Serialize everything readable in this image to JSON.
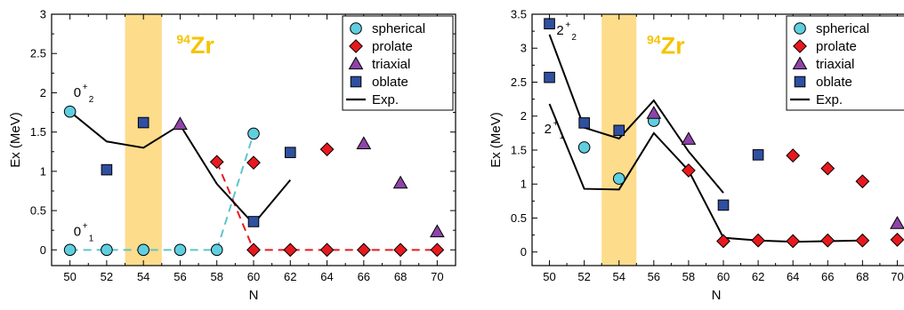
{
  "colors": {
    "spherical": "#5fcfe0",
    "prolate": "#e8191e",
    "triaxial": "#8e44a8",
    "oblate": "#2f4fa0",
    "band": "#fddc8c",
    "zr_label": "#f5c400",
    "ground_dash_spherical": "#5fc4cc",
    "ground_dash_prolate": "#e8191e"
  },
  "chart_data": [
    {
      "type": "scatter",
      "title": "",
      "xlabel": "N",
      "ylabel": "Ex (MeV)",
      "xlim": [
        49,
        71
      ],
      "ylim": [
        -0.2,
        3.0
      ],
      "xticks": [
        50,
        52,
        54,
        56,
        58,
        60,
        62,
        64,
        66,
        68,
        70
      ],
      "yticks": [
        0,
        0.5,
        1,
        1.5,
        2,
        2.5,
        3
      ],
      "ytick_labels": [
        "0",
        "0.5",
        "1",
        "1.5",
        "2",
        "2.5",
        "3"
      ],
      "band": [
        53,
        55
      ],
      "band_label": {
        "sup": "94",
        "text": "Zr",
        "x": 55.8,
        "y": 2.5
      },
      "annotations": [
        {
          "base": "0",
          "sup": "+",
          "sub": "2",
          "x": 50.2,
          "y": 1.95
        },
        {
          "base": "0",
          "sup": "+",
          "sub": "1",
          "x": 50.2,
          "y": 0.18
        }
      ],
      "series": [
        {
          "name": "spherical",
          "marker": "circle",
          "points": [
            [
              50,
              1.76
            ],
            [
              50,
              0
            ],
            [
              52,
              0
            ],
            [
              54,
              0
            ],
            [
              56,
              0
            ],
            [
              58,
              0
            ],
            [
              60,
              1.48
            ]
          ]
        },
        {
          "name": "prolate",
          "marker": "diamond",
          "points": [
            [
              58,
              1.12
            ],
            [
              60,
              1.11
            ],
            [
              64,
              1.28
            ],
            [
              60,
              0
            ],
            [
              62,
              0
            ],
            [
              64,
              0
            ],
            [
              66,
              0
            ],
            [
              68,
              0
            ],
            [
              70,
              0
            ]
          ]
        },
        {
          "name": "triaxial",
          "marker": "triangle",
          "points": [
            [
              56,
              1.6
            ],
            [
              66,
              1.35
            ],
            [
              68,
              0.85
            ],
            [
              70,
              0.23
            ]
          ]
        },
        {
          "name": "oblate",
          "marker": "square",
          "points": [
            [
              52,
              1.02
            ],
            [
              54,
              1.62
            ],
            [
              60,
              0.36
            ],
            [
              62,
              1.24
            ]
          ]
        },
        {
          "name": "Exp.",
          "marker": "line",
          "points": [
            [
              50,
              1.76
            ],
            [
              52,
              1.38
            ],
            [
              54,
              1.3
            ],
            [
              56,
              1.59
            ],
            [
              58,
              0.84
            ],
            [
              60,
              0.33
            ],
            [
              62,
              0.89
            ]
          ]
        }
      ],
      "dashed_lines": [
        {
          "color_key": "ground_dash_spherical",
          "points": [
            [
              50,
              0
            ],
            [
              58,
              0
            ],
            [
              60,
              1.48
            ]
          ]
        },
        {
          "color_key": "ground_dash_prolate",
          "points": [
            [
              58,
              1.12
            ],
            [
              60,
              0
            ],
            [
              70,
              0
            ]
          ]
        }
      ],
      "legend": {
        "placement": "top-right",
        "entries": [
          "spherical",
          "prolate",
          "triaxial",
          "oblate",
          "Exp."
        ]
      }
    },
    {
      "type": "scatter",
      "title": "",
      "xlabel": "N",
      "ylabel": "Ex (MeV)",
      "xlim": [
        49,
        71
      ],
      "ylim": [
        -0.2,
        3.5
      ],
      "xticks": [
        50,
        52,
        54,
        56,
        58,
        60,
        62,
        64,
        66,
        68,
        70
      ],
      "yticks": [
        0,
        0.5,
        1,
        1.5,
        2,
        2.5,
        3,
        3.5
      ],
      "ytick_labels": [
        "0",
        "0.5",
        "1",
        "1.5",
        "2",
        "2.5",
        "3",
        "3.5"
      ],
      "band": [
        53,
        55
      ],
      "band_label": {
        "sup": "94",
        "text": "Zr",
        "x": 55.6,
        "y": 2.92
      },
      "annotations": [
        {
          "base": "2",
          "sup": "+",
          "sub": "2",
          "x": 50.4,
          "y": 3.2
        },
        {
          "base": "2",
          "sup": "+",
          "sub": "1",
          "x": 49.7,
          "y": 1.75
        }
      ],
      "series": [
        {
          "name": "spherical",
          "marker": "circle",
          "points": [
            [
              52,
              1.54
            ],
            [
              54,
              1.08
            ],
            [
              56,
              1.93
            ]
          ]
        },
        {
          "name": "prolate",
          "marker": "diamond",
          "points": [
            [
              58,
              1.2
            ],
            [
              60,
              0.16
            ],
            [
              62,
              0.17
            ],
            [
              64,
              1.42
            ],
            [
              64,
              0.16
            ],
            [
              66,
              1.23
            ],
            [
              66,
              0.17
            ],
            [
              68,
              1.04
            ],
            [
              68,
              0.17
            ],
            [
              70,
              0.18
            ]
          ]
        },
        {
          "name": "triaxial",
          "marker": "triangle",
          "points": [
            [
              56,
              2.04
            ],
            [
              58,
              1.66
            ],
            [
              70,
              0.42
            ]
          ]
        },
        {
          "name": "oblate",
          "marker": "square",
          "points": [
            [
              50,
              3.36
            ],
            [
              50,
              2.57
            ],
            [
              52,
              1.9
            ],
            [
              54,
              1.79
            ],
            [
              60,
              0.69
            ],
            [
              62,
              1.43
            ]
          ]
        },
        {
          "name": "Exp.",
          "marker": "line",
          "points": [
            [
              50,
              3.2
            ],
            [
              52,
              1.83
            ],
            [
              54,
              1.67
            ],
            [
              56,
              2.23
            ],
            [
              58,
              1.48
            ],
            [
              60,
              0.87
            ]
          ]
        },
        {
          "name": "Exp. 2+1",
          "marker": "line",
          "points": [
            [
              50,
              2.18
            ],
            [
              52,
              0.93
            ],
            [
              54,
              0.92
            ],
            [
              56,
              1.75
            ],
            [
              58,
              1.2
            ],
            [
              60,
              0.21
            ],
            [
              62,
              0.17
            ],
            [
              64,
              0.15
            ],
            [
              66,
              0.16
            ],
            [
              68,
              0.17
            ]
          ]
        }
      ],
      "dashed_lines": [],
      "legend": {
        "placement": "top-right",
        "entries": [
          "spherical",
          "prolate",
          "triaxial",
          "oblate",
          "Exp."
        ]
      }
    }
  ]
}
